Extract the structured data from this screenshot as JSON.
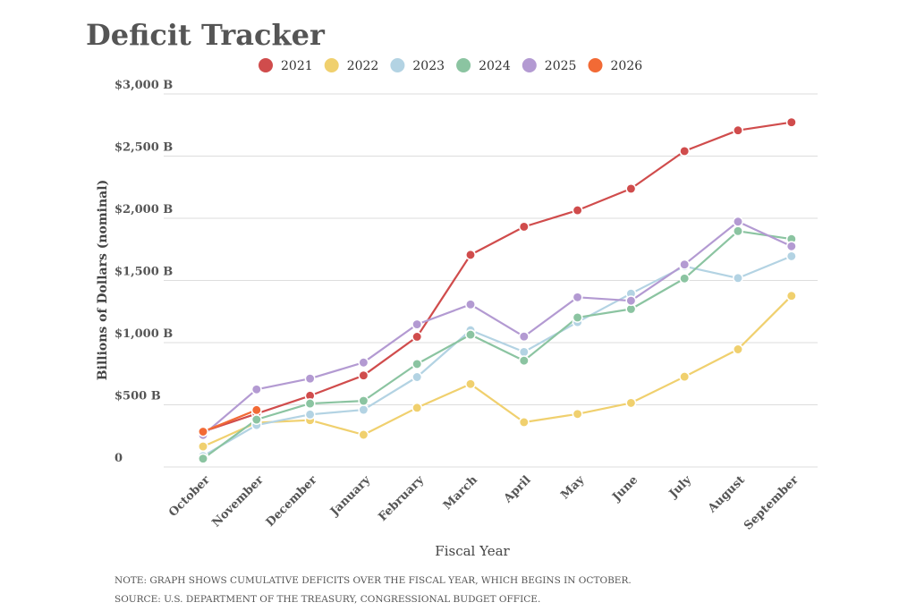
{
  "chart_data": {
    "type": "line",
    "title": "Deficit Tracker",
    "xlabel": "Fiscal Year",
    "ylabel": "Billions of Dollars (nominal)",
    "ylim": [
      0,
      3000
    ],
    "yticks": [
      0,
      500,
      1000,
      1500,
      2000,
      2500,
      3000
    ],
    "ytick_labels": [
      "0",
      "$500 B",
      "$1,000 B",
      "$1,500 B",
      "$2,000 B",
      "$2,500 B",
      "$3,000 B"
    ],
    "grid": true,
    "legend_position": "top-center",
    "categories": [
      "October",
      "November",
      "December",
      "January",
      "February",
      "March",
      "April",
      "May",
      "June",
      "July",
      "August",
      "September"
    ],
    "series": [
      {
        "name": "2021",
        "color": "#d04c4c",
        "values": [
          284,
          429,
          573,
          736,
          1047,
          1706,
          1932,
          2064,
          2238,
          2540,
          2707,
          2772
        ]
      },
      {
        "name": "2022",
        "color": "#f0d06e",
        "values": [
          165,
          356,
          376,
          259,
          476,
          667,
          360,
          426,
          515,
          726,
          946,
          1376
        ]
      },
      {
        "name": "2023",
        "color": "#b3d3e3",
        "values": [
          88,
          337,
          422,
          460,
          723,
          1100,
          925,
          1165,
          1394,
          1614,
          1519,
          1695
        ]
      },
      {
        "name": "2024",
        "color": "#8bc4a1",
        "values": [
          67,
          381,
          510,
          532,
          828,
          1064,
          855,
          1202,
          1270,
          1516,
          1897,
          1833
        ]
      },
      {
        "name": "2025",
        "color": "#b39ad2",
        "values": [
          257,
          624,
          711,
          840,
          1147,
          1307,
          1049,
          1365,
          1337,
          1628,
          1973,
          1775
        ]
      },
      {
        "name": "2026",
        "color": "#f26a35",
        "values": [
          284,
          458,
          null,
          null,
          null,
          null,
          null,
          null,
          null,
          null,
          null,
          null
        ]
      }
    ]
  },
  "notes": {
    "note": "NOTE: GRAPH SHOWS CUMULATIVE DEFICITS OVER THE FISCAL YEAR, WHICH BEGINS IN OCTOBER.",
    "source": "SOURCE: U.S. DEPARTMENT OF THE TREASURY, CONGRESSIONAL BUDGET OFFICE."
  }
}
